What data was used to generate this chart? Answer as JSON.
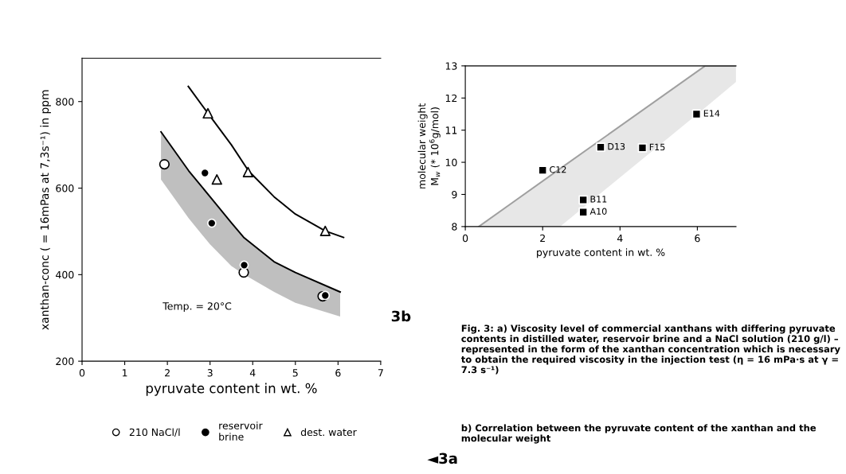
{
  "chart_data": [
    {
      "type": "scatter",
      "xlabel": "pyruvate content in wt. %",
      "ylabel": "xanthan-conc ( = 16mPas at 7,3s⁻¹) in ppm",
      "xlim": [
        0,
        7
      ],
      "ylim": [
        200,
        900
      ],
      "xticks": [
        0,
        1,
        2,
        3,
        4,
        5,
        6,
        7
      ],
      "yticks": [
        200,
        400,
        600,
        800
      ],
      "grid": false,
      "legend": "bottom",
      "series": [
        {
          "type": "line",
          "color": "#000000",
          "x": [
            1.85,
            2.5,
            3.0,
            3.5,
            3.8,
            4.5,
            5.0,
            6.05
          ],
          "values": [
            730,
            640,
            580,
            520,
            485,
            430,
            405,
            360
          ],
          "lower": [
            620,
            530,
            470,
            420,
            400,
            360,
            335,
            303
          ],
          "upper": [
            730,
            640,
            580,
            520,
            485,
            430,
            405,
            360
          ]
        },
        {
          "type": "line",
          "color": "#000000",
          "x": [
            2.49,
            2.95,
            3.5,
            3.9,
            4.5,
            5.0,
            5.7,
            6.13
          ],
          "values": [
            835,
            773,
            700,
            640,
            580,
            540,
            501,
            486
          ]
        },
        {
          "name": "210 NaCl/l",
          "color": "#ffffff",
          "marker": "circle",
          "x": [
            1.93,
            3.79,
            5.64
          ],
          "values": [
            655,
            405,
            350
          ]
        },
        {
          "name": "reservoir\nbrine",
          "color": "#000000",
          "marker": "circle",
          "x": [
            2.88,
            3.04,
            3.8,
            5.7
          ],
          "values": [
            635,
            519,
            422,
            352
          ]
        },
        {
          "name": "dest. water",
          "color": "#ffffff",
          "marker": "triangle",
          "x": [
            2.95,
            3.16,
            3.89,
            5.7
          ],
          "values": [
            773,
            620,
            637,
            501
          ]
        }
      ],
      "annotations": [
        "Temp. = 20°C",
        "◄3a"
      ]
    },
    {
      "type": "scatter",
      "xlabel": "pyruvate content in wt. %",
      "ylabel": "molecular weight\nM$_{w}$ (* 10$^{6}$g/mol)",
      "xlim": [
        0,
        7
      ],
      "ylim": [
        8,
        13
      ],
      "xticks": [
        0,
        2,
        4,
        6
      ],
      "yticks": [
        8,
        9,
        10,
        11,
        12,
        13
      ],
      "grid": false,
      "series": [
        {
          "type": "line",
          "color": "#a0a0a0",
          "x": [
            0.35,
            2.45,
            6.2,
            7
          ],
          "values": [
            8,
            9.8,
            13,
            13
          ],
          "lower": [
            8,
            8,
            11.7,
            12.5
          ],
          "upper": [
            8,
            9.8,
            13,
            13
          ]
        },
        {
          "color": "#000000",
          "marker": "square",
          "x": [
            3.05,
            3.05,
            2.0,
            3.5,
            5.98,
            4.58
          ],
          "values": [
            8.45,
            8.83,
            9.75,
            10.47,
            11.5,
            10.45
          ]
        }
      ],
      "annotations": [
        {
          "text": "A10",
          "x": 3.05,
          "y": 8.45
        },
        {
          "text": "B11",
          "x": 3.05,
          "y": 8.83
        },
        {
          "text": "C12",
          "x": 2.0,
          "y": 9.75
        },
        {
          "text": "D13",
          "x": 3.5,
          "y": 10.47
        },
        {
          "text": "E14",
          "x": 5.98,
          "y": 11.5
        },
        {
          "text": "F15",
          "x": 4.58,
          "y": 10.45
        },
        "3b",
        "Fig. 3: a) Viscosity level of commercial xanthans with differing pyruvate contents in distilled water, reservoir brine and a NaCl solution (210 g/l) – represented in the form of the xanthan concentration which is necessary to obtain the required viscosity in the injection test (η = 16 mPa·s at γ = 7.3 s⁻¹)",
        "b) Correlation between the pyruvate content of the xanthan and the molecular weight"
      ]
    }
  ]
}
